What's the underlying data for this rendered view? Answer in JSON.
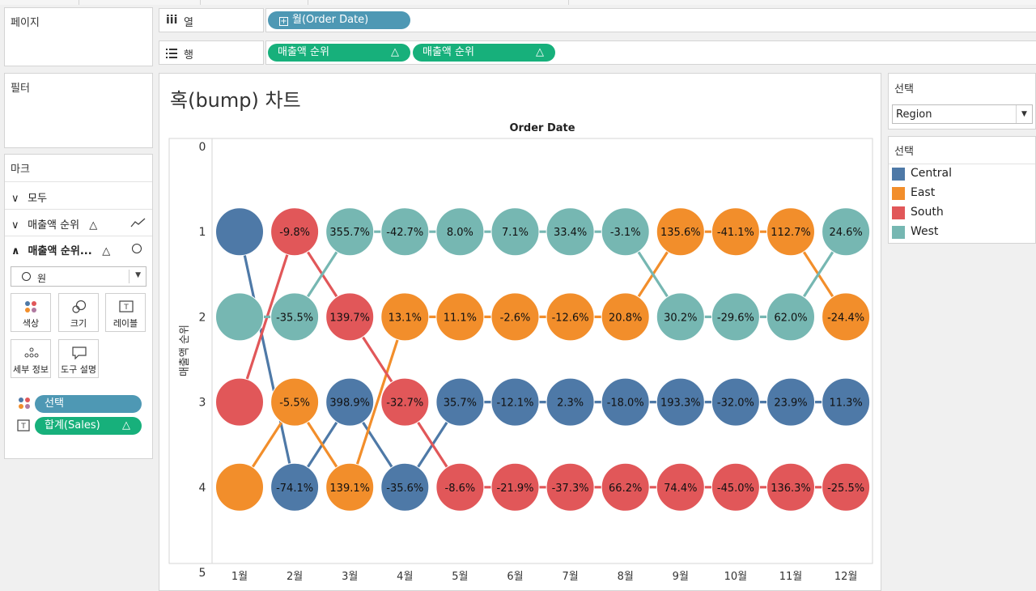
{
  "left": {
    "pages_title": "페이지",
    "filters_title": "필터",
    "marks_title": "마크",
    "marks_rows": [
      {
        "label": "모두",
        "chevron": "∨"
      },
      {
        "label": "매출액 순위",
        "chevron": "∨",
        "delta": "△"
      },
      {
        "label": "매출액 순위...",
        "chevron": "∧",
        "delta": "△"
      }
    ],
    "mark_type": "원",
    "buttons": {
      "color": "색상",
      "size": "크기",
      "label": "레이블",
      "detail": "세부 정보",
      "tooltip": "도구 설명"
    },
    "pills": {
      "select": "선택",
      "sum_sales": "합계(Sales)",
      "sum_delta": "△"
    }
  },
  "shelves": {
    "columns_label": "열",
    "rows_label": "행",
    "columns_pill": "월(Order Date)",
    "rows_pills": [
      "매출액 순위",
      "매출액 순위"
    ],
    "delta": "△"
  },
  "chart": {
    "title": "혹(bump) 차트",
    "header": "Order Date",
    "ylabel": "매출액 순위"
  },
  "right": {
    "select_title_1": "선택",
    "dropdown_value": "Region",
    "select_title_2": "선택"
  },
  "colors": {
    "Central": "#4e79a7",
    "East": "#f28e2b",
    "South": "#e15759",
    "West": "#76b7b2"
  },
  "chart_data": {
    "type": "bump",
    "title": "혹(bump) 차트",
    "x_header": "Order Date",
    "ylabel": "매출액 순위",
    "categories": [
      "1월",
      "2월",
      "3월",
      "4월",
      "5월",
      "6월",
      "7월",
      "8월",
      "9월",
      "10월",
      "11월",
      "12월"
    ],
    "ylim": [
      0,
      5
    ],
    "yticks": [
      "0",
      "1",
      "2",
      "3",
      "4",
      "5"
    ],
    "legend_position": "right",
    "series": [
      {
        "name": "Central",
        "ranks": [
          1,
          4,
          3,
          4,
          3,
          3,
          3,
          3,
          3,
          3,
          3,
          3
        ],
        "labels": [
          "",
          "-74.1%",
          "398.9%",
          "-35.6%",
          "35.7%",
          "-12.1%",
          "2.3%",
          "-18.0%",
          "193.3%",
          "-32.0%",
          "23.9%",
          "11.3%"
        ]
      },
      {
        "name": "East",
        "ranks": [
          4,
          3,
          4,
          2,
          2,
          2,
          2,
          2,
          1,
          1,
          1,
          2
        ],
        "labels": [
          "",
          "-5.5%",
          "139.1%",
          "13.1%",
          "11.1%",
          "-2.6%",
          "-12.6%",
          "20.8%",
          "135.6%",
          "-41.1%",
          "112.7%",
          "-24.4%"
        ]
      },
      {
        "name": "South",
        "ranks": [
          3,
          1,
          2,
          3,
          4,
          4,
          4,
          4,
          4,
          4,
          4,
          4
        ],
        "labels": [
          "",
          "-9.8%",
          "139.7%",
          "-32.7%",
          "-8.6%",
          "-21.9%",
          "-37.3%",
          "66.2%",
          "74.4%",
          "-45.0%",
          "136.3%",
          "-25.5%"
        ]
      },
      {
        "name": "West",
        "ranks": [
          2,
          2,
          1,
          1,
          1,
          1,
          1,
          1,
          2,
          2,
          2,
          1
        ],
        "labels": [
          "",
          "-35.5%",
          "355.7%",
          "-42.7%",
          "8.0%",
          "7.1%",
          "33.4%",
          "-3.1%",
          "30.2%",
          "-29.6%",
          "62.0%",
          "24.6%"
        ]
      }
    ]
  }
}
